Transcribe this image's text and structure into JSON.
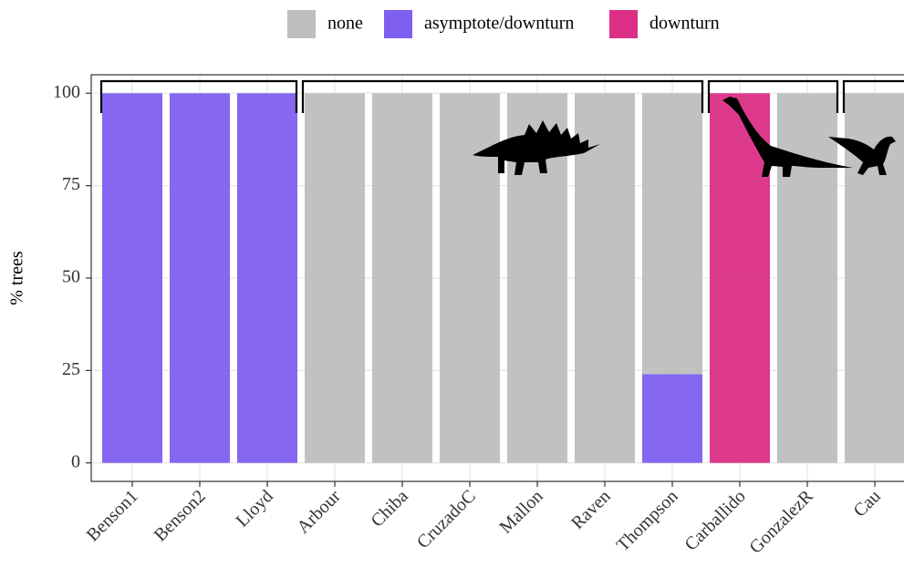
{
  "chart_data": {
    "type": "stacked-bar",
    "y_label": "% trees",
    "categories": [
      "Benson1",
      "Benson2",
      "Lloyd",
      "Arbour",
      "Chiba",
      "CruzadoC",
      "Mallon",
      "Raven",
      "Thompson",
      "Carballido",
      "GonzalezR",
      "Cau"
    ],
    "series": [
      {
        "name": "none",
        "color": "#bebebe",
        "values": [
          0,
          0,
          0,
          100,
          100,
          100,
          100,
          100,
          76,
          0,
          100,
          100
        ]
      },
      {
        "name": "asymptote/downturn",
        "color": "#7e5ff0",
        "values": [
          100,
          100,
          100,
          0,
          0,
          0,
          0,
          0,
          24,
          0,
          0,
          0
        ]
      },
      {
        "name": "downturn",
        "color": "#db2f86",
        "values": [
          0,
          0,
          0,
          0,
          0,
          0,
          0,
          0,
          0,
          100,
          0,
          0
        ]
      }
    ],
    "ylim": [
      -5,
      105
    ],
    "yticks": [
      0,
      25,
      50,
      75,
      100
    ],
    "grid": true
  }
}
